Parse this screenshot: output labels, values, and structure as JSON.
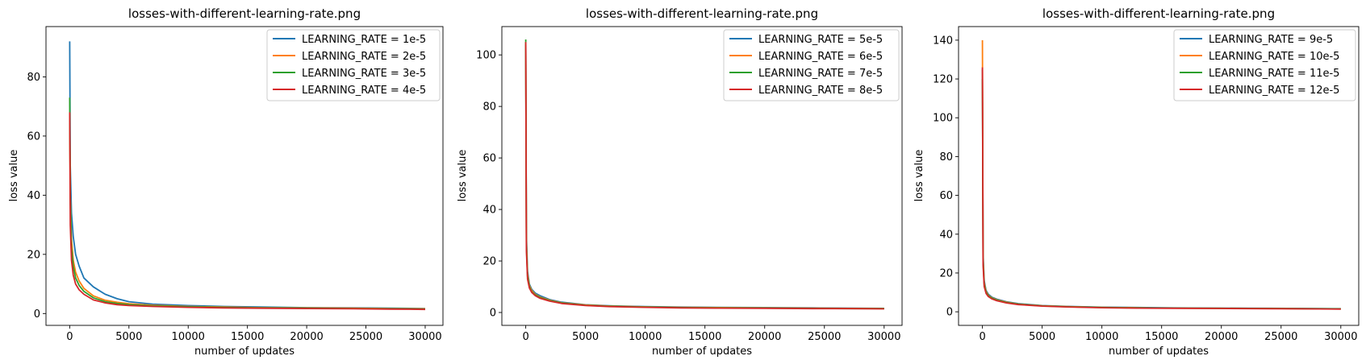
{
  "chart_data": [
    {
      "type": "line",
      "title": "losses-with-different-learning-rate.png",
      "xlabel": "number of updates",
      "ylabel": "loss value",
      "xlim": [
        -2000,
        31500
      ],
      "ylim": [
        -4,
        97
      ],
      "xticks": [
        0,
        5000,
        10000,
        15000,
        20000,
        25000,
        30000
      ],
      "yticks": [
        0,
        20,
        40,
        60,
        80
      ],
      "legend_position": "top-right",
      "series": [
        {
          "name": "LEARNING_RATE = 1e-5",
          "color": "#1f77b4",
          "x": [
            0,
            50,
            150,
            300,
            500,
            800,
            1200,
            2000,
            3000,
            4000,
            5000,
            7000,
            10000,
            13000,
            16000,
            20000,
            24000,
            27000,
            30000
          ],
          "y": [
            92,
            50,
            34,
            26,
            20,
            16,
            12,
            9,
            6.5,
            5,
            4,
            3.2,
            2.7,
            2.4,
            2.2,
            2.0,
            1.9,
            1.8,
            1.7
          ]
        },
        {
          "name": "LEARNING_RATE = 2e-5",
          "color": "#ff7f0e",
          "x": [
            0,
            50,
            150,
            300,
            500,
            800,
            1200,
            2000,
            3000,
            4000,
            5000,
            7000,
            10000,
            13000,
            16000,
            20000,
            24000,
            27000,
            30000
          ],
          "y": [
            68,
            40,
            25,
            18,
            14,
            11,
            8.5,
            6,
            4.5,
            3.8,
            3.3,
            2.8,
            2.4,
            2.2,
            2.0,
            1.9,
            1.8,
            1.7,
            1.6
          ]
        },
        {
          "name": "LEARNING_RATE = 3e-5",
          "color": "#2ca02c",
          "x": [
            0,
            50,
            150,
            300,
            500,
            800,
            1200,
            2000,
            3000,
            4000,
            5000,
            7000,
            10000,
            13000,
            16000,
            20000,
            24000,
            27000,
            30000
          ],
          "y": [
            73,
            38,
            22,
            16,
            12,
            9.5,
            7.5,
            5.3,
            4.0,
            3.4,
            3.0,
            2.6,
            2.3,
            2.1,
            1.9,
            1.8,
            1.7,
            1.6,
            1.5
          ]
        },
        {
          "name": "LEARNING_RATE = 4e-5",
          "color": "#d62728",
          "x": [
            0,
            50,
            150,
            300,
            500,
            800,
            1200,
            2000,
            3000,
            4000,
            5000,
            7000,
            10000,
            13000,
            16000,
            20000,
            24000,
            27000,
            30000
          ],
          "y": [
            68,
            30,
            18,
            13,
            10,
            8,
            6.5,
            4.6,
            3.6,
            3.0,
            2.7,
            2.4,
            2.1,
            1.9,
            1.8,
            1.7,
            1.6,
            1.5,
            1.4
          ]
        }
      ]
    },
    {
      "type": "line",
      "title": "losses-with-different-learning-rate.png",
      "xlabel": "number of updates",
      "ylabel": "loss value",
      "xlim": [
        -2000,
        31500
      ],
      "ylim": [
        -5,
        111
      ],
      "xticks": [
        0,
        5000,
        10000,
        15000,
        20000,
        25000,
        30000
      ],
      "yticks": [
        0,
        20,
        40,
        60,
        80,
        100
      ],
      "legend_position": "top-right",
      "series": [
        {
          "name": "LEARNING_RATE = 5e-5",
          "color": "#1f77b4",
          "x": [
            0,
            50,
            150,
            300,
            500,
            800,
            1200,
            2000,
            3000,
            5000,
            7000,
            10000,
            13000,
            16000,
            20000,
            24000,
            27000,
            30000
          ],
          "y": [
            104,
            30,
            16,
            11,
            9,
            7.5,
            6.5,
            5,
            4,
            3,
            2.6,
            2.3,
            2.1,
            2.0,
            1.9,
            1.8,
            1.7,
            1.6
          ]
        },
        {
          "name": "LEARNING_RATE = 6e-5",
          "color": "#ff7f0e",
          "x": [
            0,
            50,
            150,
            300,
            500,
            800,
            1200,
            2000,
            3000,
            5000,
            7000,
            10000,
            13000,
            16000,
            20000,
            24000,
            27000,
            30000
          ],
          "y": [
            105,
            28,
            15,
            10.5,
            8.5,
            7,
            6,
            4.8,
            3.8,
            2.9,
            2.5,
            2.2,
            2.0,
            1.9,
            1.8,
            1.7,
            1.6,
            1.5
          ]
        },
        {
          "name": "LEARNING_RATE = 7e-5",
          "color": "#2ca02c",
          "x": [
            0,
            50,
            150,
            300,
            500,
            800,
            1200,
            2000,
            3000,
            5000,
            7000,
            10000,
            13000,
            16000,
            20000,
            24000,
            27000,
            30000
          ],
          "y": [
            106,
            26,
            14,
            10,
            8,
            6.8,
            5.8,
            4.6,
            3.7,
            2.8,
            2.4,
            2.1,
            1.9,
            1.8,
            1.7,
            1.6,
            1.5,
            1.5
          ]
        },
        {
          "name": "LEARNING_RATE = 8e-5",
          "color": "#d62728",
          "x": [
            0,
            50,
            150,
            300,
            500,
            800,
            1200,
            2000,
            3000,
            5000,
            7000,
            10000,
            13000,
            16000,
            20000,
            24000,
            27000,
            30000
          ],
          "y": [
            105,
            24,
            13,
            9.5,
            7.8,
            6.5,
            5.5,
            4.4,
            3.5,
            2.7,
            2.3,
            2.0,
            1.8,
            1.7,
            1.6,
            1.5,
            1.5,
            1.4
          ]
        }
      ]
    },
    {
      "type": "line",
      "title": "losses-with-different-learning-rate.png",
      "xlabel": "number of updates",
      "ylabel": "loss value",
      "xlim": [
        -2000,
        31500
      ],
      "ylim": [
        -7,
        147
      ],
      "xticks": [
        0,
        5000,
        10000,
        15000,
        20000,
        25000,
        30000
      ],
      "yticks": [
        0,
        20,
        40,
        60,
        80,
        100,
        120,
        140
      ],
      "legend_position": "top-right",
      "series": [
        {
          "name": "LEARNING_RATE = 9e-5",
          "color": "#1f77b4",
          "x": [
            0,
            50,
            150,
            300,
            500,
            800,
            1200,
            2000,
            3000,
            5000,
            7000,
            10000,
            13000,
            16000,
            20000,
            24000,
            27000,
            30000
          ],
          "y": [
            125,
            30,
            16,
            11,
            9,
            7.5,
            6.5,
            5.2,
            4.2,
            3.2,
            2.8,
            2.4,
            2.2,
            2.0,
            1.9,
            1.8,
            1.7,
            1.6
          ]
        },
        {
          "name": "LEARNING_RATE = 10e-5",
          "color": "#ff7f0e",
          "x": [
            0,
            50,
            150,
            300,
            500,
            800,
            1200,
            2000,
            3000,
            5000,
            7000,
            10000,
            13000,
            16000,
            20000,
            24000,
            27000,
            30000
          ],
          "y": [
            140,
            28,
            15,
            10.5,
            8.5,
            7.2,
            6.2,
            5,
            4,
            3.1,
            2.7,
            2.3,
            2.1,
            1.9,
            1.8,
            1.7,
            1.6,
            1.5
          ]
        },
        {
          "name": "LEARNING_RATE = 11e-5",
          "color": "#2ca02c",
          "x": [
            0,
            50,
            150,
            300,
            500,
            800,
            1200,
            2000,
            3000,
            5000,
            7000,
            10000,
            13000,
            16000,
            20000,
            24000,
            27000,
            30000
          ],
          "y": [
            120,
            26,
            14,
            10,
            8.2,
            7,
            6,
            4.8,
            3.9,
            3.0,
            2.6,
            2.2,
            2.0,
            1.9,
            1.8,
            1.7,
            1.6,
            1.5
          ]
        },
        {
          "name": "LEARNING_RATE = 12e-5",
          "color": "#d62728",
          "x": [
            0,
            50,
            150,
            300,
            500,
            800,
            1200,
            2000,
            3000,
            5000,
            7000,
            10000,
            13000,
            16000,
            20000,
            24000,
            27000,
            30000
          ],
          "y": [
            126,
            24,
            13,
            9.5,
            7.8,
            6.6,
            5.7,
            4.6,
            3.7,
            2.9,
            2.5,
            2.1,
            1.9,
            1.8,
            1.7,
            1.6,
            1.5,
            1.4
          ]
        }
      ]
    }
  ]
}
